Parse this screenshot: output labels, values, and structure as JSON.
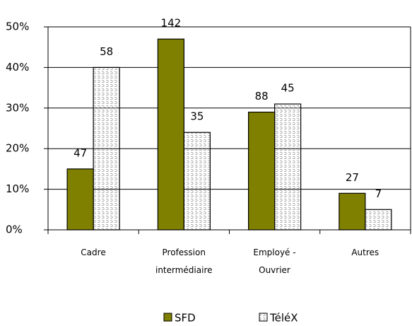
{
  "chart_data": {
    "type": "bar",
    "categories": [
      "Cadre",
      "Profession\nintermédiaire",
      "Employé -\nOuvrier",
      "Autres"
    ],
    "series": [
      {
        "name": "SFD",
        "color": "#808000",
        "values": [
          15,
          47,
          29,
          9
        ],
        "value_labels": [
          "47",
          "142",
          "88",
          "27"
        ]
      },
      {
        "name": "TéléX",
        "color": "#ffffff",
        "values": [
          40,
          24,
          31,
          5
        ],
        "value_labels": [
          "58",
          "35",
          "45",
          "7"
        ]
      }
    ],
    "ylim": [
      0,
      50
    ],
    "yticks": [
      {
        "value": 0,
        "label": "0%"
      },
      {
        "value": 10,
        "label": "10%"
      },
      {
        "value": 20,
        "label": "20%"
      },
      {
        "value": 30,
        "label": "30%"
      },
      {
        "value": 40,
        "label": "40%"
      },
      {
        "value": 50,
        "label": "50%"
      }
    ],
    "grid": true,
    "legend": "bottom"
  }
}
